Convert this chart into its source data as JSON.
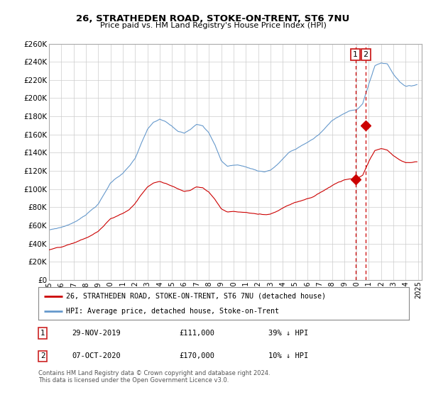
{
  "title": "26, STRATHEDEN ROAD, STOKE-ON-TRENT, ST6 7NU",
  "subtitle": "Price paid vs. HM Land Registry's House Price Index (HPI)",
  "ylim": [
    0,
    260000
  ],
  "yticks": [
    0,
    20000,
    40000,
    60000,
    80000,
    100000,
    120000,
    140000,
    160000,
    180000,
    200000,
    220000,
    240000,
    260000
  ],
  "legend_line1": "26, STRATHEDEN ROAD, STOKE-ON-TRENT, ST6 7NU (detached house)",
  "legend_line2": "HPI: Average price, detached house, Stoke-on-Trent",
  "transaction1_label": "1",
  "transaction1_date": "29-NOV-2019",
  "transaction1_price": "£111,000",
  "transaction1_hpi": "39% ↓ HPI",
  "transaction2_label": "2",
  "transaction2_date": "07-OCT-2020",
  "transaction2_price": "£170,000",
  "transaction2_hpi": "10% ↓ HPI",
  "footnote": "Contains HM Land Registry data © Crown copyright and database right 2024.\nThis data is licensed under the Open Government Licence v3.0.",
  "property_color": "#cc0000",
  "hpi_color": "#6699cc",
  "marker1_x": 2019.917,
  "marker1_y": 111000,
  "marker2_x": 2020.75,
  "marker2_y": 170000,
  "background_color": "#ffffff",
  "grid_color": "#cccccc",
  "xlim_start": 1995.0,
  "xlim_end": 2025.3,
  "xtick_years": [
    1995,
    1996,
    1997,
    1998,
    1999,
    2000,
    2001,
    2002,
    2003,
    2004,
    2005,
    2006,
    2007,
    2008,
    2009,
    2010,
    2011,
    2012,
    2013,
    2014,
    2015,
    2016,
    2017,
    2018,
    2019,
    2020,
    2021,
    2022,
    2023,
    2024,
    2025
  ]
}
